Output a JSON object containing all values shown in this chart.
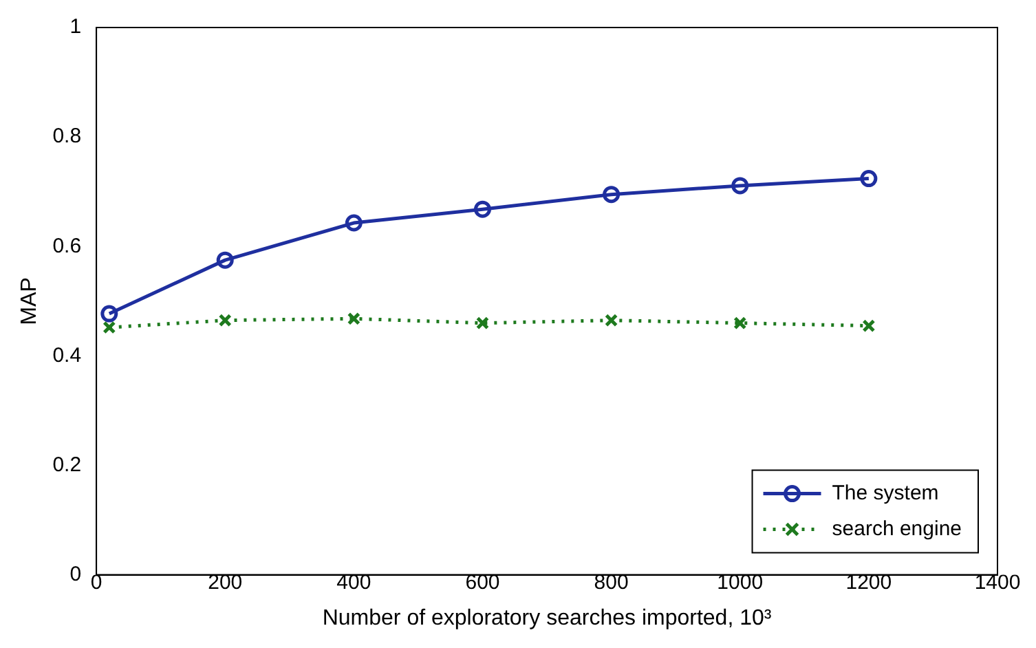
{
  "chart_data": {
    "type": "line",
    "xlabel": "Number of exploratory searches imported, 10³",
    "ylabel": "MAP",
    "x": [
      20,
      200,
      400,
      600,
      800,
      1000,
      1200
    ],
    "series": [
      {
        "name": "The system",
        "color": "#1f2f9f",
        "marker": "circle",
        "line_style": "solid",
        "values": [
          0.477,
          0.575,
          0.643,
          0.668,
          0.695,
          0.711,
          0.724
        ]
      },
      {
        "name": "search engine",
        "color": "#1e7a1e",
        "marker": "cross",
        "line_style": "dotted",
        "values": [
          0.452,
          0.465,
          0.468,
          0.46,
          0.465,
          0.46,
          0.455
        ]
      }
    ],
    "xlim": [
      0,
      1400
    ],
    "xticks": [
      0,
      200,
      400,
      600,
      800,
      1000,
      1200,
      1400
    ],
    "ylim": [
      0,
      1
    ],
    "yticks": [
      0,
      0.2,
      0.4,
      0.6,
      0.8,
      1
    ],
    "grid": false,
    "legend": "bottom right"
  }
}
